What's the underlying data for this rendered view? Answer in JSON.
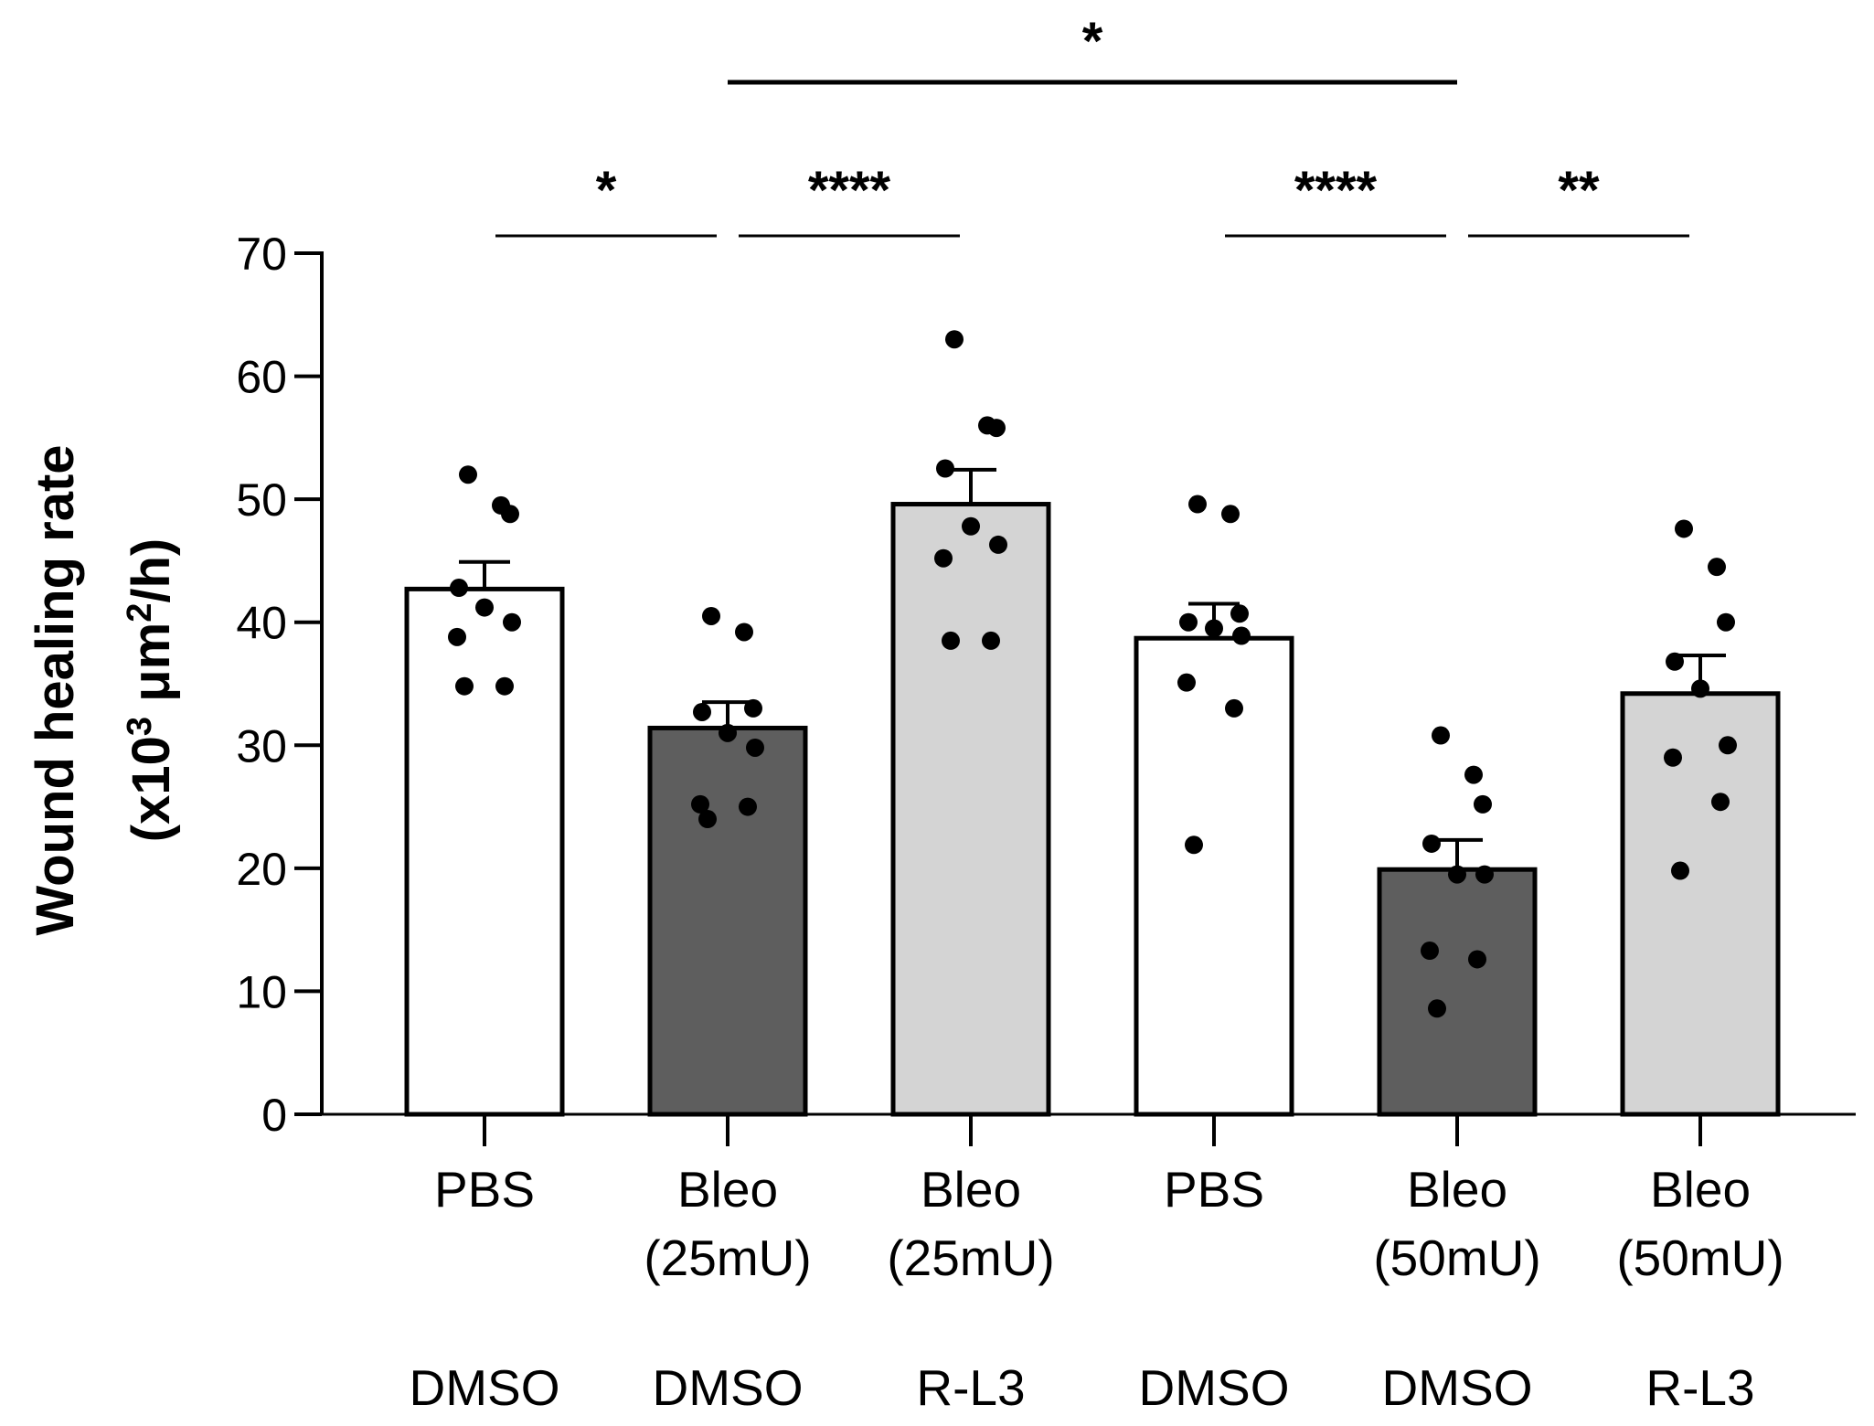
{
  "chart_data": {
    "type": "bar",
    "title": "",
    "ylabel": {
      "line1": "Wound healing rate",
      "line2_prefix": "(x10",
      "line2_sup1": "3",
      "line2_mid": " μm",
      "line2_sup2": "2",
      "line2_suffix": "/h)"
    },
    "xlabel": "",
    "ylim": [
      0,
      70
    ],
    "yticks": [
      "0",
      "10",
      "20",
      "30",
      "40",
      "50",
      "60",
      "70"
    ],
    "categories": [
      {
        "line1": "PBS",
        "line2": "",
        "treatment": "DMSO"
      },
      {
        "line1": "Bleo",
        "line2": "(25mU)",
        "treatment": "DMSO"
      },
      {
        "line1": "Bleo",
        "line2": "(25mU)",
        "treatment": "R-L3"
      },
      {
        "line1": "PBS",
        "line2": "",
        "treatment": "DMSO"
      },
      {
        "line1": "Bleo",
        "line2": "(50mU)",
        "treatment": "DMSO"
      },
      {
        "line1": "Bleo",
        "line2": "(50mU)",
        "treatment": "R-L3"
      }
    ],
    "values": [
      42.7,
      31.4,
      49.6,
      38.7,
      19.9,
      34.2
    ],
    "sem": [
      2.2,
      2.1,
      2.8,
      2.8,
      2.4,
      3.1
    ],
    "colors": [
      "#ffffff",
      "#5e5e5e",
      "#d4d4d4",
      "#ffffff",
      "#5e5e5e",
      "#d4d4d4"
    ],
    "points": [
      [
        52.0,
        49.5,
        48.8,
        42.8,
        41.2,
        40.0,
        38.8,
        34.8,
        34.8
      ],
      [
        40.5,
        39.2,
        33.0,
        32.7,
        31.0,
        29.8,
        25.2,
        25.0,
        24.0
      ],
      [
        63.0,
        56.0,
        55.8,
        52.5,
        47.8,
        46.3,
        45.2,
        38.5,
        38.5
      ],
      [
        49.6,
        48.8,
        40.7,
        40.0,
        39.5,
        38.9,
        35.1,
        33.0,
        21.9
      ],
      [
        30.8,
        27.6,
        25.2,
        22.0,
        19.5,
        19.5,
        13.3,
        12.6,
        8.6
      ],
      [
        47.6,
        44.5,
        40.0,
        36.8,
        34.6,
        30.0,
        29.0,
        25.4,
        19.8
      ]
    ],
    "significance": [
      {
        "from": 0,
        "to": 1,
        "label": "*"
      },
      {
        "from": 1,
        "to": 2,
        "label": "****"
      },
      {
        "from": 3,
        "to": 4,
        "label": "****"
      },
      {
        "from": 4,
        "to": 5,
        "label": "**"
      },
      {
        "from": 1,
        "to": 4,
        "label": "*"
      }
    ]
  }
}
